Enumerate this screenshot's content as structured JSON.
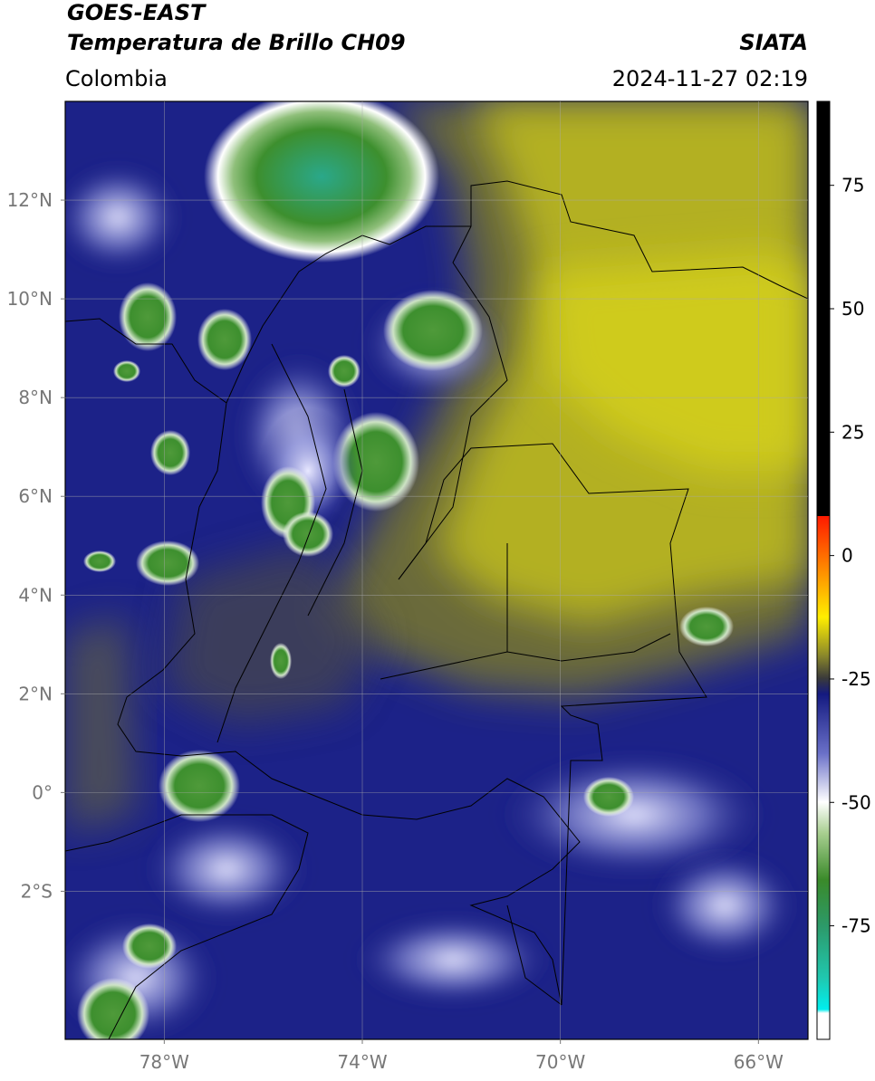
{
  "header": {
    "title": "GOES-EAST",
    "subtitle": "Temperatura de Brillo CH09",
    "region": "Colombia",
    "source": "SIATA",
    "datetime": "2024-11-27 02:19"
  },
  "map": {
    "xlim": [
      -80,
      -65
    ],
    "ylim": [
      -5,
      14
    ],
    "xticks": [
      {
        "value": -78,
        "label": "78°W"
      },
      {
        "value": -74,
        "label": "74°W"
      },
      {
        "value": -70,
        "label": "70°W"
      },
      {
        "value": -66,
        "label": "66°W"
      }
    ],
    "yticks": [
      {
        "value": 12,
        "label": "12°N"
      },
      {
        "value": 10,
        "label": "10°N"
      },
      {
        "value": 8,
        "label": "8°N"
      },
      {
        "value": 6,
        "label": "6°N"
      },
      {
        "value": 4,
        "label": "4°N"
      },
      {
        "value": 2,
        "label": "2°N"
      },
      {
        "value": 0,
        "label": "0°"
      },
      {
        "value": -2,
        "label": "2°S"
      }
    ],
    "grid": true
  },
  "colorbar": {
    "lim": [
      -98,
      92
    ],
    "ticks": [
      75,
      50,
      25,
      0,
      -25,
      -50,
      -75
    ]
  }
}
